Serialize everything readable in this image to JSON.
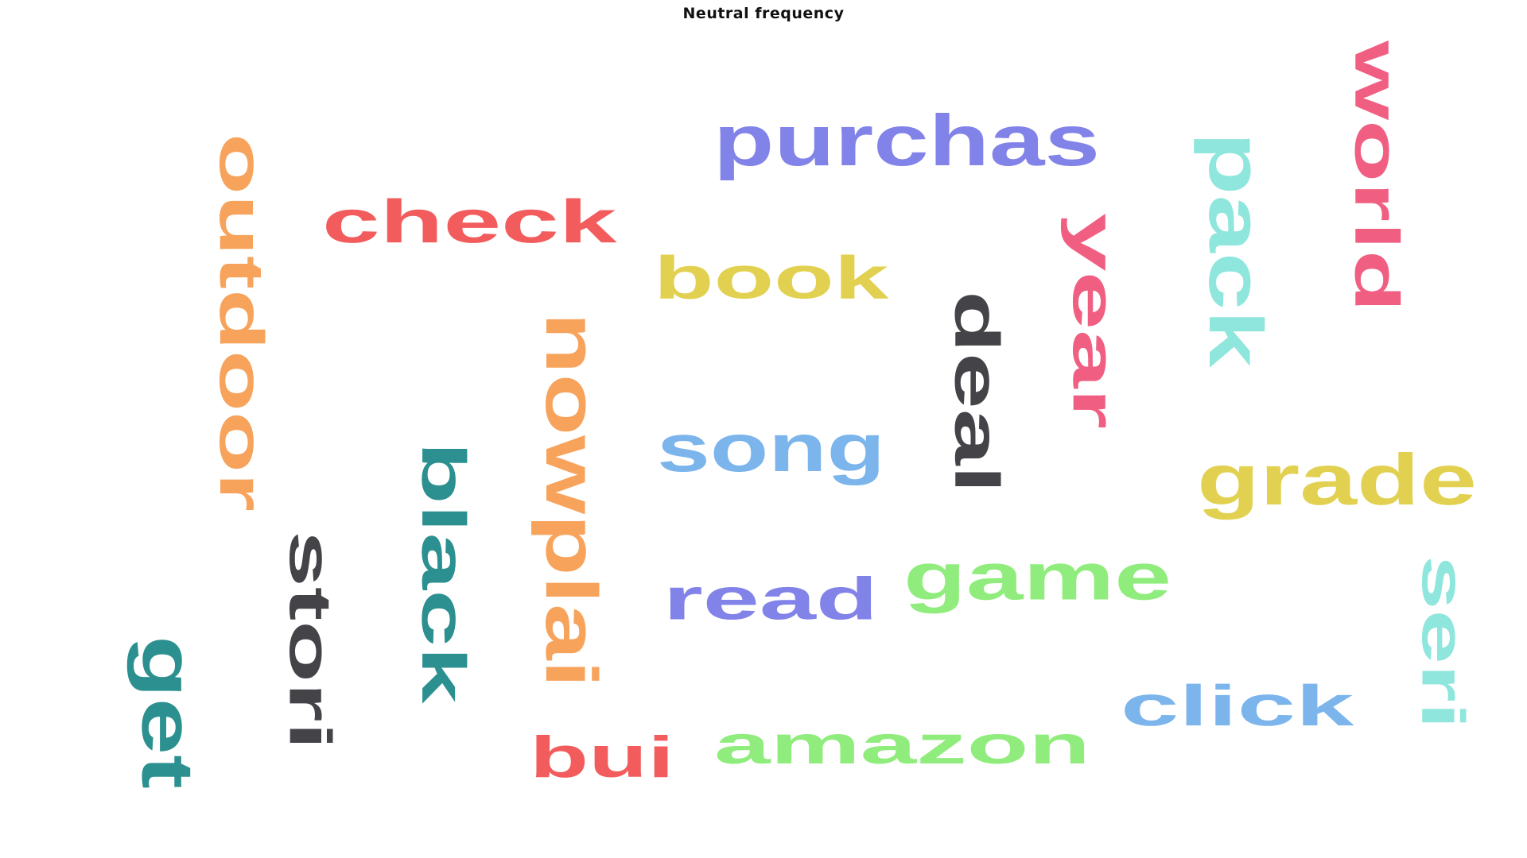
{
  "chart_data": {
    "type": "wordcloud",
    "title": "Neutral frequency",
    "words": [
      {
        "text": "purchas",
        "color": "#8183E8"
      },
      {
        "text": "world",
        "color": "#F05F82"
      },
      {
        "text": "pack",
        "color": "#8FE6DD"
      },
      {
        "text": "check",
        "color": "#F25C5C"
      },
      {
        "text": "year",
        "color": "#F05F82"
      },
      {
        "text": "book",
        "color": "#E2D151"
      },
      {
        "text": "outdoor",
        "color": "#F7A35C"
      },
      {
        "text": "deal",
        "color": "#434348"
      },
      {
        "text": "nowplai",
        "color": "#F7A35C"
      },
      {
        "text": "song",
        "color": "#7CB5EC"
      },
      {
        "text": "grade",
        "color": "#E2D151"
      },
      {
        "text": "black",
        "color": "#2B908F"
      },
      {
        "text": "stori",
        "color": "#434348"
      },
      {
        "text": "game",
        "color": "#90ED7D"
      },
      {
        "text": "read",
        "color": "#8183E8"
      },
      {
        "text": "seri",
        "color": "#8FE6DD"
      },
      {
        "text": "get",
        "color": "#2B908F"
      },
      {
        "text": "click",
        "color": "#7CB5EC"
      },
      {
        "text": "amazon",
        "color": "#90ED7D"
      },
      {
        "text": "bui",
        "color": "#F25C5C"
      }
    ]
  }
}
